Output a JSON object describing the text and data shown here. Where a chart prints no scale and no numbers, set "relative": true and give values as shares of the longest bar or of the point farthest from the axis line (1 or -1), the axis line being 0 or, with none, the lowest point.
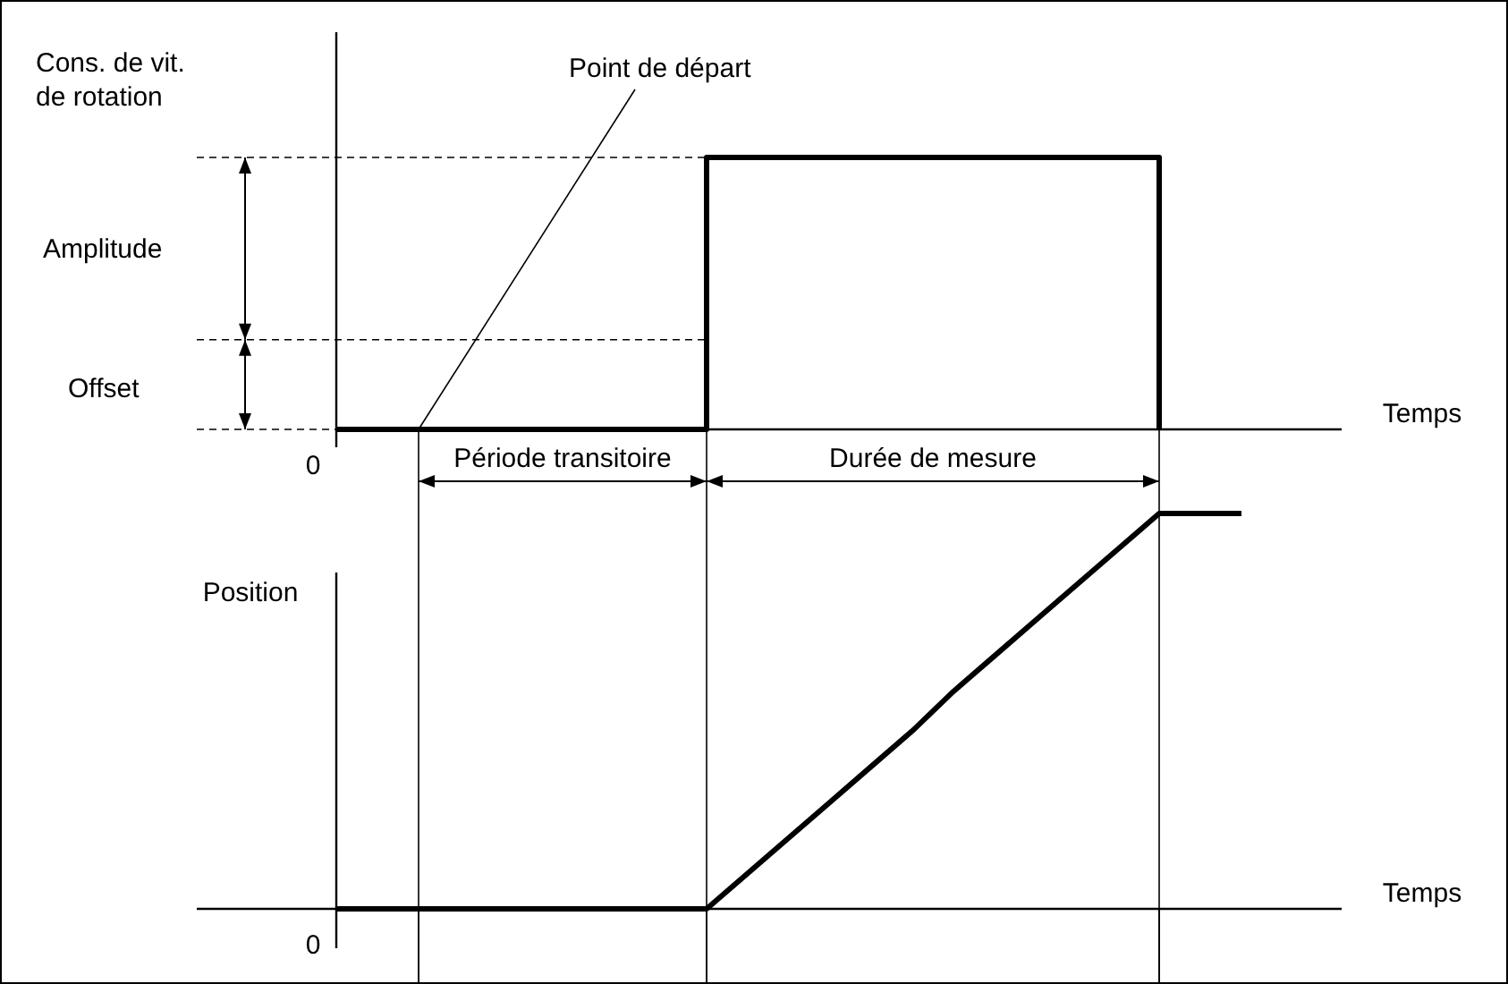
{
  "chart_data": [
    {
      "type": "step",
      "ylabel": "Cons. de vit. de rotation",
      "xlabel": "Temps",
      "relative": true,
      "color": "#000000",
      "categories": [
        null,
        null,
        null,
        null,
        null,
        null,
        null,
        null,
        null,
        null,
        null,
        null,
        null,
        null,
        null,
        null,
        null,
        null,
        null,
        null,
        null,
        null,
        null,
        null,
        null
      ],
      "values": [
        0,
        0,
        0,
        0,
        0,
        0,
        0,
        0,
        0,
        1,
        1,
        1,
        1,
        1,
        1,
        1,
        1,
        1,
        1,
        1,
        0,
        null,
        null,
        null,
        null
      ],
      "ref_lines": [
        {
          "axis": "y",
          "value": 1,
          "line_style": "dashed"
        },
        {
          "axis": "y",
          "value": 0.33,
          "line_style": "dashed"
        }
      ],
      "annotations": [
        "Point de départ",
        "Amplitude",
        "Offset",
        "Période transitoire",
        "Durée de mesure",
        "0"
      ]
    },
    {
      "type": "line",
      "ylabel": "Position",
      "xlabel": "Temps",
      "relative": true,
      "color": "#000000",
      "categories": [
        null,
        null,
        null,
        null,
        null,
        null,
        null,
        null,
        null,
        null,
        null,
        null,
        null,
        null,
        null,
        null,
        null,
        null,
        null,
        null,
        null,
        null,
        null,
        null,
        null
      ],
      "values": [
        0,
        0,
        0,
        0,
        0,
        0,
        0,
        0,
        0,
        0,
        0.09,
        0.18,
        0.27,
        0.36,
        0.45,
        0.55,
        0.64,
        0.73,
        0.82,
        0.91,
        1,
        1,
        1,
        null,
        null
      ],
      "annotations": [
        "0"
      ]
    }
  ]
}
